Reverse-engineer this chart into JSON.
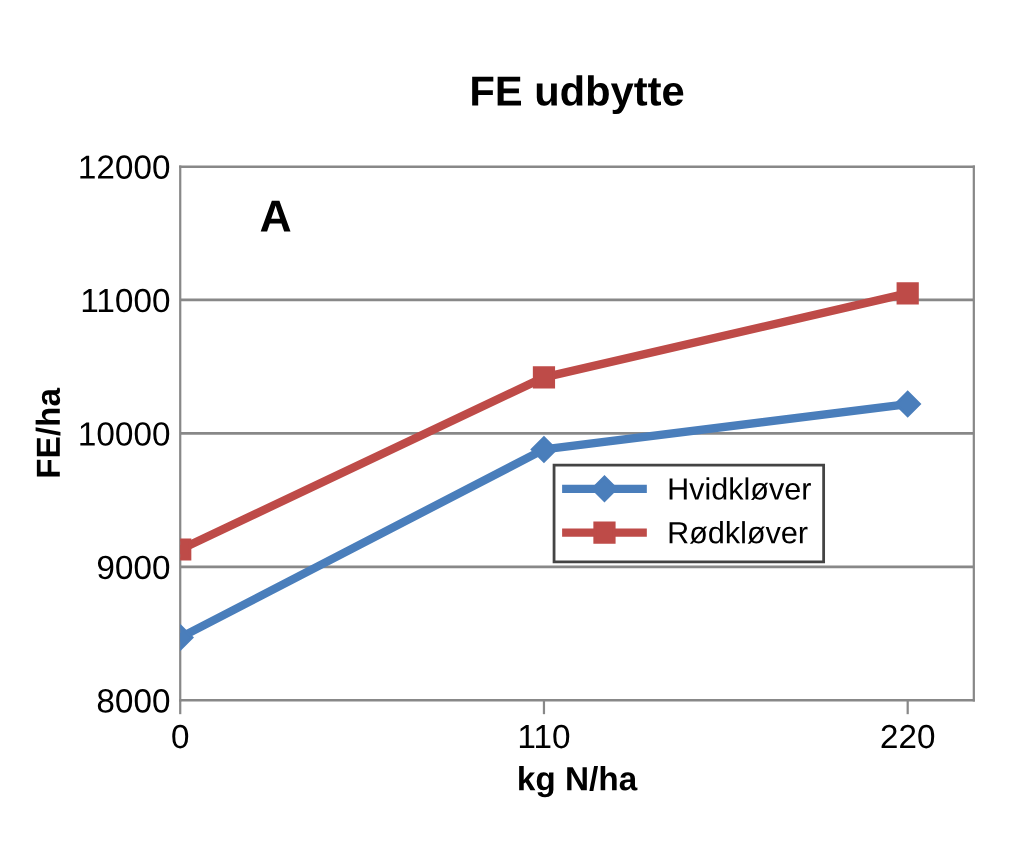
{
  "chart_data": {
    "type": "line",
    "title": "FE udbytte",
    "xlabel": "kg N/ha",
    "ylabel": "FE/ha",
    "annotations": [
      "A"
    ],
    "series": [
      {
        "name": "Hvidkløver",
        "color": "#4a7ebb",
        "marker": "diamond",
        "x": [
          0,
          110,
          220
        ],
        "values": [
          8470,
          9880,
          10220
        ]
      },
      {
        "name": "Rødkløver",
        "color": "#be4b48",
        "marker": "square",
        "x": [
          0,
          110,
          220
        ],
        "values": [
          9130,
          10420,
          11050
        ]
      }
    ],
    "xlim": [
      0,
      240
    ],
    "xticks": [
      0,
      110,
      220
    ],
    "ylim": [
      8000,
      12000
    ],
    "yticks": [
      8000,
      9000,
      10000,
      11000,
      12000
    ],
    "grid": "y",
    "legend": "right",
    "line_style": "solid"
  }
}
